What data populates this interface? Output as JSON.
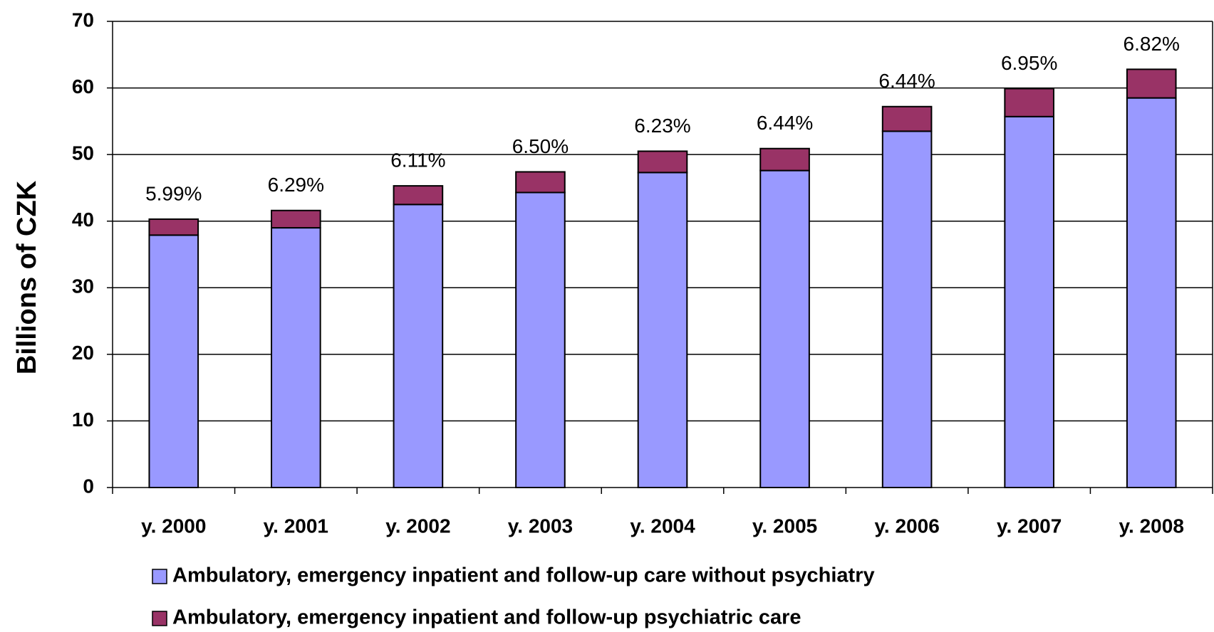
{
  "chart_data": {
    "type": "bar",
    "stacked": true,
    "y_label": "Billions of CZK",
    "categories": [
      "y. 2000",
      "y. 2001",
      "y. 2002",
      "y. 2003",
      "y. 2004",
      "y. 2005",
      "y. 2006",
      "y. 2007",
      "y. 2008"
    ],
    "series": [
      {
        "name": "Ambulatory, emergency inpatient and follow-up care without psychiatry",
        "color": "#9999ff",
        "values": [
          37.9,
          39.0,
          42.5,
          44.3,
          47.3,
          47.6,
          53.5,
          55.7,
          58.5
        ]
      },
      {
        "name": "Ambulatory, emergency inpatient and follow-up psychiatric care",
        "color": "#993366",
        "values": [
          2.4,
          2.6,
          2.8,
          3.1,
          3.2,
          3.3,
          3.7,
          4.2,
          4.3
        ]
      }
    ],
    "annotations": [
      "5.99%",
      "6.29%",
      "6.11%",
      "6.50%",
      "6.23%",
      "6.44%",
      "6.44%",
      "6.95%",
      "6.82%"
    ],
    "ylim": [
      0,
      70
    ],
    "yticks": [
      0,
      10,
      20,
      30,
      40,
      50,
      60,
      70
    ],
    "grid": true
  }
}
